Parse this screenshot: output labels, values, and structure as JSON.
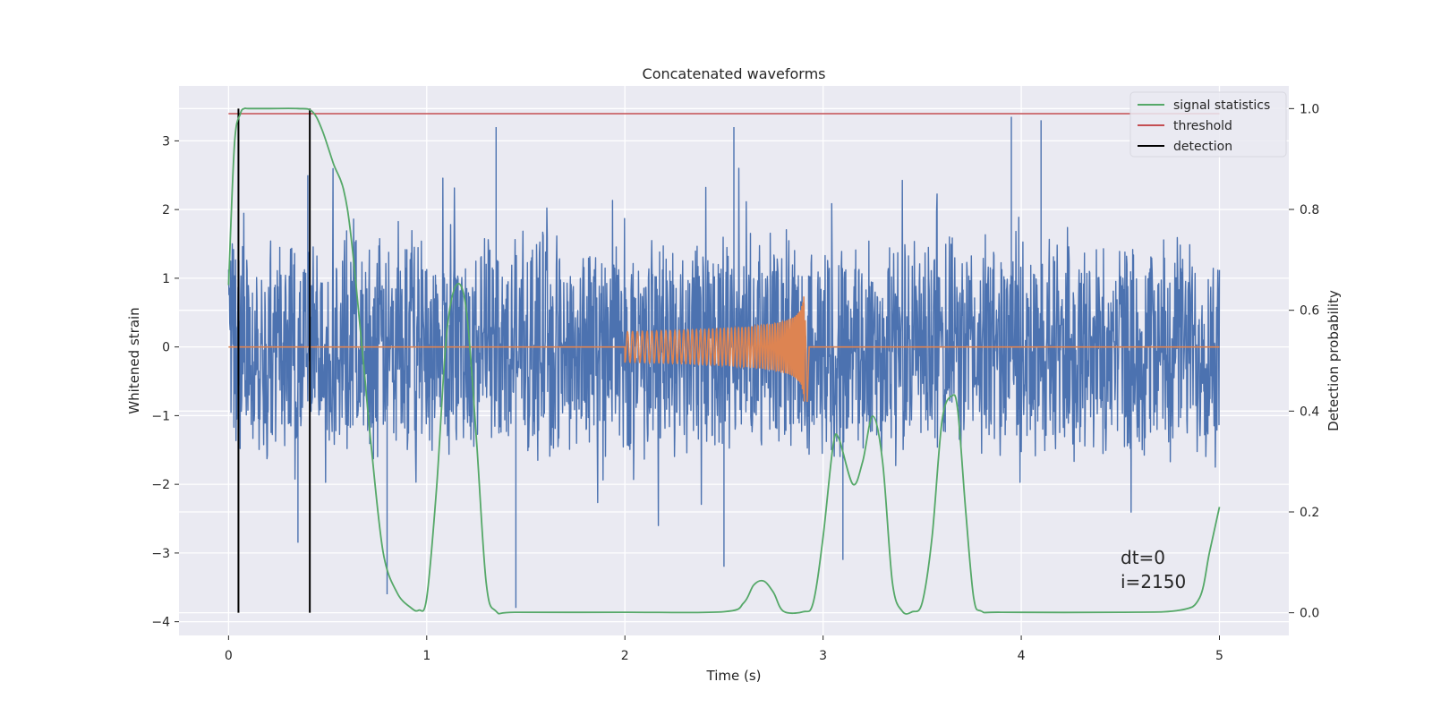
{
  "chart_data": {
    "type": "line",
    "title": "Concatenated waveforms",
    "xlabel": "Time (s)",
    "ylabel": "Whitened strain",
    "y2label": "Detection probability",
    "xlim": [
      -0.25,
      5.35
    ],
    "ylim": [
      -4.2,
      3.8
    ],
    "y2lim": [
      -0.045,
      1.045
    ],
    "x_ticks": [
      "0",
      "1",
      "2",
      "3",
      "4",
      "5"
    ],
    "y_ticks": [
      "−4",
      "−3",
      "−2",
      "−1",
      "0",
      "1",
      "2",
      "3"
    ],
    "y2_ticks": [
      "0.0",
      "0.2",
      "0.4",
      "0.6",
      "0.8",
      "1.0"
    ],
    "grid": true,
    "legend_position": "top-right",
    "series": [
      {
        "name": "",
        "role": "whitened strain noise",
        "color": "#4c72b0",
        "axis": "left",
        "x_start": 0,
        "x_end": 5,
        "typical_range": [
          -1.5,
          1.5
        ],
        "extremes": [
          {
            "x": 0.4,
            "y": 2.5
          },
          {
            "x": 0.8,
            "y": -3.6
          },
          {
            "x": 1.45,
            "y": -3.8
          },
          {
            "x": 1.35,
            "y": 3.2
          },
          {
            "x": 2.55,
            "y": 3.2
          },
          {
            "x": 3.95,
            "y": 3.35
          },
          {
            "x": 4.1,
            "y": 3.3
          },
          {
            "x": 2.5,
            "y": -3.2
          },
          {
            "x": 3.1,
            "y": -3.1
          },
          {
            "x": 0.35,
            "y": -2.85
          }
        ]
      },
      {
        "name": "",
        "role": "injected chirp",
        "color": "#dd8452",
        "axis": "left",
        "x_start": 2.0,
        "x_peak": 2.91,
        "peak_amplitude": 0.9,
        "baseline": 0
      },
      {
        "name": "signal statistics",
        "color": "#55a868",
        "axis": "right",
        "x": [
          0,
          0.03,
          0.06,
          0.08,
          0.1,
          0.2,
          0.35,
          0.42,
          0.47,
          0.53,
          0.58,
          0.62,
          0.68,
          0.72,
          0.78,
          0.85,
          0.92,
          0.96,
          1.0,
          1.05,
          1.1,
          1.15,
          1.2,
          1.25,
          1.3,
          1.35,
          1.45,
          2.0,
          2.5,
          2.6,
          2.65,
          2.7,
          2.75,
          2.8,
          2.9,
          2.95,
          3.0,
          3.05,
          3.08,
          3.15,
          3.2,
          3.25,
          3.3,
          3.35,
          3.4,
          3.45,
          3.5,
          3.55,
          3.6,
          3.65,
          3.68,
          3.72,
          3.76,
          3.8,
          3.9,
          4.5,
          4.8,
          4.9,
          4.95,
          5.0
        ],
        "values": [
          0.65,
          0.93,
          0.99,
          1.0,
          1.0,
          1.0,
          1.0,
          0.995,
          0.96,
          0.89,
          0.84,
          0.74,
          0.5,
          0.33,
          0.12,
          0.04,
          0.01,
          0.005,
          0.03,
          0.25,
          0.55,
          0.65,
          0.6,
          0.35,
          0.06,
          0.003,
          0.001,
          0.001,
          0.002,
          0.02,
          0.055,
          0.063,
          0.04,
          0.003,
          0.002,
          0.02,
          0.15,
          0.33,
          0.345,
          0.255,
          0.3,
          0.39,
          0.3,
          0.06,
          0.003,
          0.002,
          0.02,
          0.15,
          0.38,
          0.43,
          0.4,
          0.2,
          0.03,
          0.003,
          0.001,
          0.001,
          0.005,
          0.03,
          0.12,
          0.21
        ]
      },
      {
        "name": "threshold",
        "color": "#c44e52",
        "axis": "right",
        "x": [
          0,
          5
        ],
        "values": [
          0.99,
          0.99
        ]
      },
      {
        "name": "detection",
        "color": "#000000",
        "axis": "right",
        "type": "vlines",
        "x": [
          0.05,
          0.41
        ],
        "range": [
          0,
          1.0
        ]
      }
    ],
    "annotations": [
      "dt=0",
      "i=2150"
    ]
  }
}
